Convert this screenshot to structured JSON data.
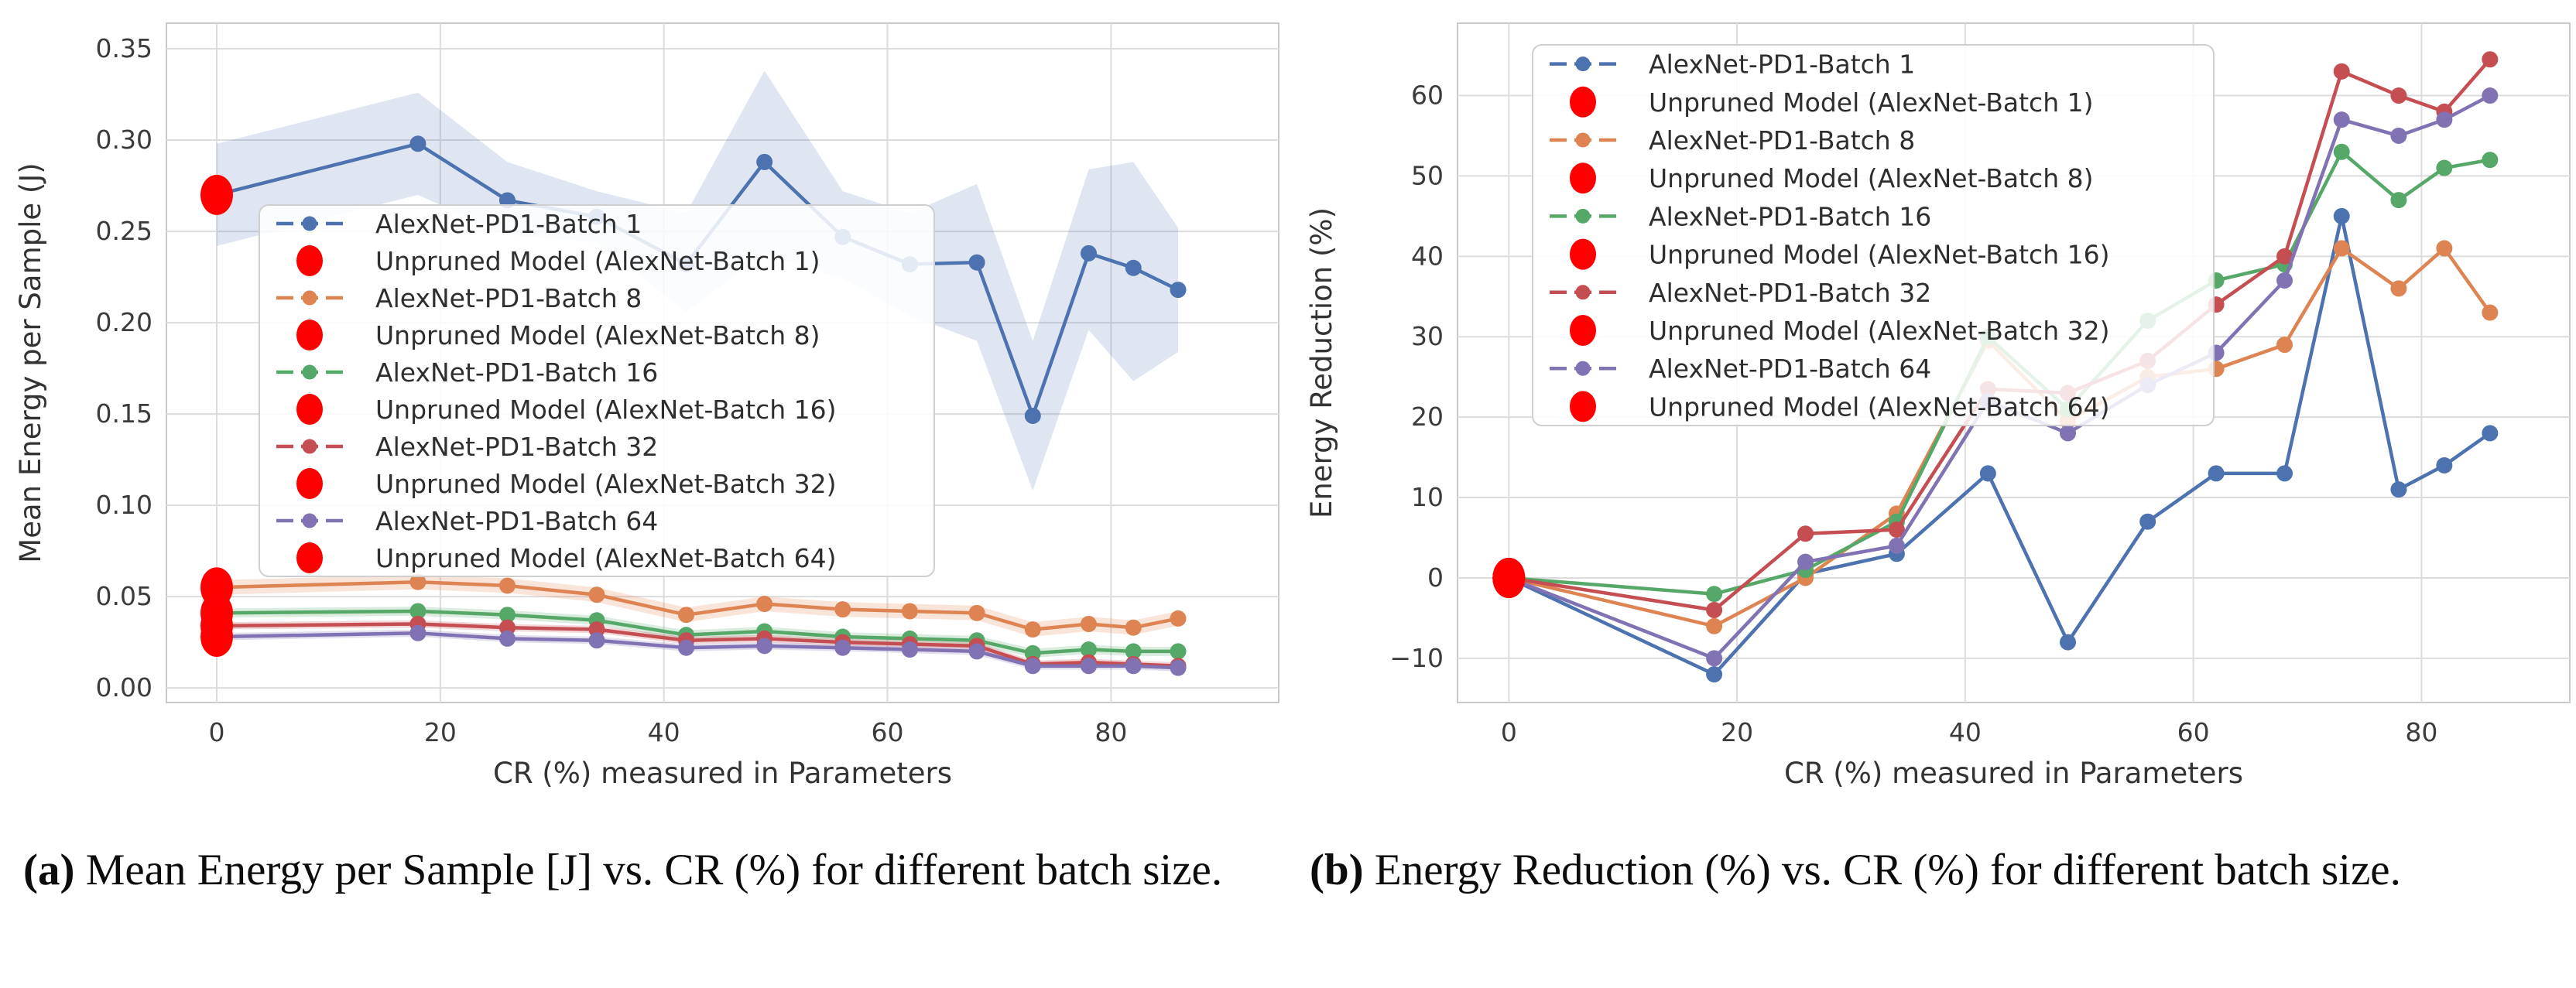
{
  "palette": {
    "blue": "#4C72B0",
    "orange": "#DD8452",
    "green": "#55A868",
    "red": "#C44E52",
    "purple": "#8172B3",
    "unpruned_red": "#FF0000",
    "grid": "#DCDCDC",
    "spine": "#C8C8C8",
    "tick_text": "#3B3B3B",
    "axis_label_text": "#333333",
    "legend_border": "#CFCFCF"
  },
  "captions": {
    "a_label": "(a)",
    "a_text": " Mean Energy per Sample [J] vs. CR (%) for different batch size.",
    "b_label": "(b)",
    "b_text": " Energy Reduction (%) vs. CR (%) for different batch size."
  },
  "chart_data": [
    {
      "type": "line",
      "title": "",
      "xlabel": "CR (%) measured in Parameters",
      "ylabel": "Mean Energy per Sample (J)",
      "xlim": [
        -4.5,
        95
      ],
      "ylim": [
        -0.008,
        0.364
      ],
      "xticks": [
        0,
        20,
        40,
        60,
        80
      ],
      "xtick_labels": [
        "0",
        "20",
        "40",
        "60",
        "80"
      ],
      "yticks": [
        0.0,
        0.05,
        0.1,
        0.15,
        0.2,
        0.25,
        0.3,
        0.35
      ],
      "ytick_labels": [
        "0.00",
        "0.05",
        "0.10",
        "0.15",
        "0.20",
        "0.25",
        "0.30",
        "0.35"
      ],
      "grid": true,
      "legend_box": [
        335,
        265,
        872,
        480
      ],
      "x": [
        0,
        18,
        26,
        34,
        42,
        49,
        56,
        62,
        68,
        73,
        78,
        82,
        86
      ],
      "series": [
        {
          "name": "AlexNet-PD1-Batch 1",
          "color": "blue",
          "values": [
            0.27,
            0.298,
            0.267,
            0.258,
            0.232,
            0.288,
            0.247,
            0.232,
            0.233,
            0.149,
            0.238,
            0.23,
            0.218
          ],
          "band_upper": [
            0.298,
            0.326,
            0.288,
            0.272,
            0.26,
            0.338,
            0.272,
            0.26,
            0.276,
            0.19,
            0.284,
            0.288,
            0.252
          ],
          "band_lower": [
            0.242,
            0.27,
            0.248,
            0.244,
            0.206,
            0.238,
            0.224,
            0.204,
            0.19,
            0.108,
            0.196,
            0.168,
            0.184
          ],
          "band_opacity": 0.18
        },
        {
          "name": "AlexNet-PD1-Batch 8",
          "color": "orange",
          "values": [
            0.055,
            0.058,
            0.056,
            0.051,
            0.04,
            0.046,
            0.043,
            0.042,
            0.041,
            0.032,
            0.035,
            0.033,
            0.038
          ],
          "band_delta": 0.004,
          "band_opacity": 0.22
        },
        {
          "name": "AlexNet-PD1-Batch 16",
          "color": "green",
          "values": [
            0.041,
            0.042,
            0.04,
            0.037,
            0.029,
            0.031,
            0.028,
            0.027,
            0.026,
            0.019,
            0.021,
            0.02,
            0.02
          ],
          "band_delta": 0.0025,
          "band_opacity": 0.22
        },
        {
          "name": "AlexNet-PD1-Batch 32",
          "color": "red",
          "values": [
            0.034,
            0.035,
            0.033,
            0.032,
            0.026,
            0.027,
            0.025,
            0.024,
            0.023,
            0.013,
            0.014,
            0.013,
            0.012
          ],
          "band_delta": 0.002,
          "band_opacity": 0.22
        },
        {
          "name": "AlexNet-PD1-Batch 64",
          "color": "purple",
          "values": [
            0.028,
            0.03,
            0.027,
            0.026,
            0.022,
            0.023,
            0.022,
            0.021,
            0.02,
            0.012,
            0.012,
            0.012,
            0.011
          ],
          "band_delta": 0.002,
          "band_opacity": 0.22
        }
      ],
      "unpruned": [
        {
          "name": "Unpruned Model (AlexNet-Batch 1)",
          "x": 0,
          "y": 0.27
        },
        {
          "name": "Unpruned Model (AlexNet-Batch 8)",
          "x": 0,
          "y": 0.055
        },
        {
          "name": "Unpruned Model (AlexNet-Batch 16)",
          "x": 0,
          "y": 0.041
        },
        {
          "name": "Unpruned Model (AlexNet-Batch 32)",
          "x": 0,
          "y": 0.034
        },
        {
          "name": "Unpruned Model (AlexNet-Batch 64)",
          "x": 0,
          "y": 0.028
        }
      ],
      "legend": [
        {
          "label": "AlexNet-PD1-Batch 1",
          "marker": "line",
          "color": "blue"
        },
        {
          "label": "Unpruned Model (AlexNet-Batch 1)",
          "marker": "dot",
          "color": "unpruned_red"
        },
        {
          "label": "AlexNet-PD1-Batch 8",
          "marker": "line",
          "color": "orange"
        },
        {
          "label": "Unpruned Model (AlexNet-Batch 8)",
          "marker": "dot",
          "color": "unpruned_red"
        },
        {
          "label": "AlexNet-PD1-Batch 16",
          "marker": "line",
          "color": "green"
        },
        {
          "label": "Unpruned Model (AlexNet-Batch 16)",
          "marker": "dot",
          "color": "unpruned_red"
        },
        {
          "label": "AlexNet-PD1-Batch 32",
          "marker": "line",
          "color": "red"
        },
        {
          "label": "Unpruned Model (AlexNet-Batch 32)",
          "marker": "dot",
          "color": "unpruned_red"
        },
        {
          "label": "AlexNet-PD1-Batch 64",
          "marker": "line",
          "color": "purple"
        },
        {
          "label": "Unpruned Model (AlexNet-Batch 64)",
          "marker": "dot",
          "color": "unpruned_red"
        }
      ]
    },
    {
      "type": "line",
      "title": "",
      "xlabel": "CR (%) measured in Parameters",
      "ylabel": "Energy Reduction (%)",
      "xlim": [
        -4.5,
        93
      ],
      "ylim": [
        -15.5,
        69
      ],
      "xticks": [
        0,
        20,
        40,
        60,
        80
      ],
      "xtick_labels": [
        "0",
        "20",
        "40",
        "60",
        "80"
      ],
      "yticks": [
        -10,
        0,
        10,
        20,
        30,
        40,
        50,
        60
      ],
      "ytick_labels": [
        "−10",
        "0",
        "10",
        "20",
        "30",
        "40",
        "50",
        "60"
      ],
      "grid": true,
      "legend_box": [
        312,
        58,
        880,
        492
      ],
      "x": [
        0,
        18,
        26,
        34,
        42,
        49,
        56,
        62,
        68,
        73,
        78,
        82,
        86
      ],
      "series": [
        {
          "name": "AlexNet-PD1-Batch 1",
          "color": "blue",
          "values": [
            0,
            -12,
            0.5,
            3,
            13,
            -8,
            7,
            13,
            13,
            45,
            11,
            14,
            18
          ]
        },
        {
          "name": "AlexNet-PD1-Batch 8",
          "color": "orange",
          "values": [
            0,
            -6,
            0,
            8,
            29.5,
            19.5,
            25,
            26,
            29,
            41,
            36,
            41,
            33
          ]
        },
        {
          "name": "AlexNet-PD1-Batch 16",
          "color": "green",
          "values": [
            0,
            -2,
            1,
            7,
            30,
            21,
            32,
            37,
            39,
            53,
            47,
            51,
            52
          ]
        },
        {
          "name": "AlexNet-PD1-Batch 32",
          "color": "red",
          "values": [
            0,
            -4,
            5.5,
            6,
            23.5,
            23,
            27,
            34,
            40,
            63,
            60,
            58,
            64.5
          ]
        },
        {
          "name": "AlexNet-PD1-Batch 64",
          "color": "purple",
          "values": [
            0,
            -10,
            2,
            4,
            22,
            18,
            24,
            28,
            37,
            57,
            55,
            57,
            60
          ]
        }
      ],
      "unpruned": [
        {
          "name": "Unpruned Model (AlexNet-Batch 1)",
          "x": 0,
          "y": 0
        },
        {
          "name": "Unpruned Model (AlexNet-Batch 8)",
          "x": 0,
          "y": 0
        },
        {
          "name": "Unpruned Model (AlexNet-Batch 16)",
          "x": 0,
          "y": 0
        },
        {
          "name": "Unpruned Model (AlexNet-Batch 32)",
          "x": 0,
          "y": 0
        },
        {
          "name": "Unpruned Model (AlexNet-Batch 64)",
          "x": 0,
          "y": 0
        }
      ],
      "legend": [
        {
          "label": "AlexNet-PD1-Batch 1",
          "marker": "line",
          "color": "blue"
        },
        {
          "label": "Unpruned Model (AlexNet-Batch 1)",
          "marker": "dot",
          "color": "unpruned_red"
        },
        {
          "label": "AlexNet-PD1-Batch 8",
          "marker": "line",
          "color": "orange"
        },
        {
          "label": "Unpruned Model (AlexNet-Batch 8)",
          "marker": "dot",
          "color": "unpruned_red"
        },
        {
          "label": "AlexNet-PD1-Batch 16",
          "marker": "line",
          "color": "green"
        },
        {
          "label": "Unpruned Model (AlexNet-Batch 16)",
          "marker": "dot",
          "color": "unpruned_red"
        },
        {
          "label": "AlexNet-PD1-Batch 32",
          "marker": "line",
          "color": "red"
        },
        {
          "label": "Unpruned Model (AlexNet-Batch 32)",
          "marker": "dot",
          "color": "unpruned_red"
        },
        {
          "label": "AlexNet-PD1-Batch 64",
          "marker": "line",
          "color": "purple"
        },
        {
          "label": "Unpruned Model (AlexNet-Batch 64)",
          "marker": "dot",
          "color": "unpruned_red"
        }
      ]
    }
  ]
}
